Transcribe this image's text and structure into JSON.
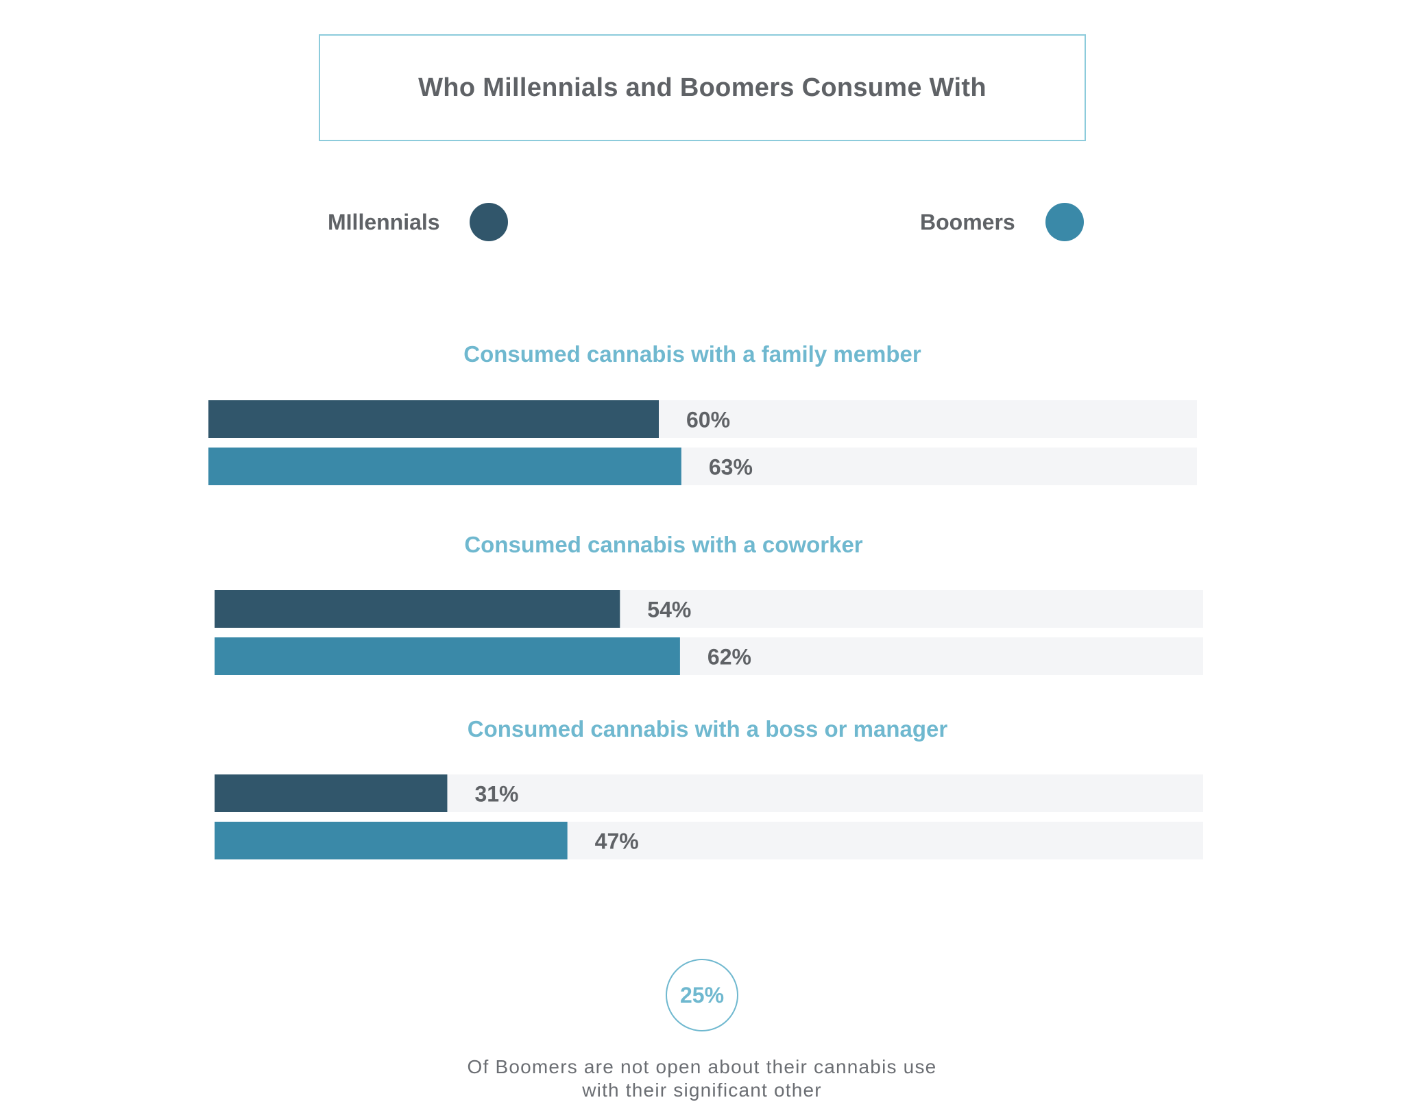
{
  "title": "Who Millennials and Boomers Consume With",
  "colors": {
    "millennials": "#31566b",
    "boomers": "#3a89a8",
    "track": "#f4f5f7",
    "category_title": "#6fb8cf",
    "value_text": "#5f6266"
  },
  "chart_data": {
    "type": "bar",
    "orientation": "horizontal",
    "unit": "%",
    "xlim": [
      0,
      100
    ],
    "legend": [
      {
        "name": "MIllennials",
        "color": "#31566b"
      },
      {
        "name": "Boomers",
        "color": "#3a89a8"
      }
    ],
    "categories": [
      "Consumed cannabis with a family member",
      "Consumed cannabis with a coworker",
      "Consumed cannabis with a boss or manager"
    ],
    "series": [
      {
        "name": "MIllennials",
        "values": [
          60,
          54,
          31
        ],
        "labels": [
          "60%",
          "54%",
          "31%"
        ]
      },
      {
        "name": "Boomers",
        "values": [
          63,
          62,
          47
        ],
        "labels": [
          "63%",
          "62%",
          "47%"
        ]
      }
    ]
  },
  "callout": {
    "value": "25%",
    "caption_line1": "Of Boomers are not open about their cannabis use",
    "caption_line2": "with their significant other"
  }
}
